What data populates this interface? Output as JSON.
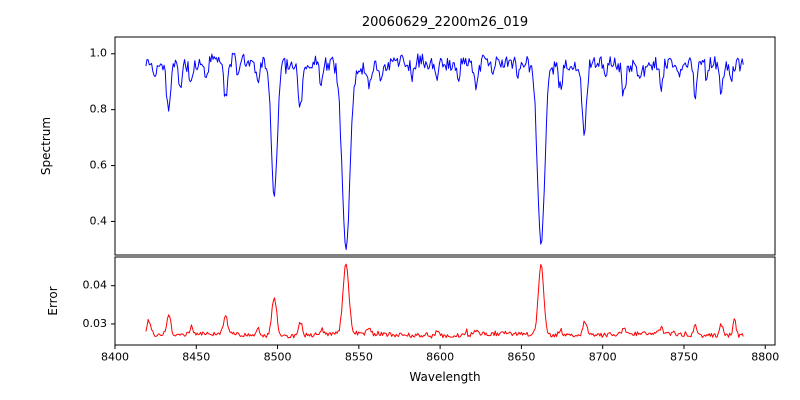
{
  "figure": {
    "title": "20060629_2200m26_019",
    "xlabel": "Wavelength",
    "background": "#ffffff"
  },
  "chart_data": {
    "type": "line",
    "title": "20060629_2200m26_019",
    "xlabel": "Wavelength",
    "xlim": [
      8400,
      8806
    ],
    "x_ticks": [
      8400,
      8450,
      8500,
      8550,
      8600,
      8650,
      8700,
      8750,
      8800
    ],
    "x_start": 8419,
    "x_end": 8787,
    "x_step": 0.7,
    "line_format": [
      "center_angstrom",
      "amplitude",
      "sigma_angstrom"
    ],
    "subplots": [
      {
        "name": "spectrum",
        "ylabel": "Spectrum",
        "color": "#0000ff",
        "ylim": [
          0.28,
          1.06
        ],
        "yticks": [
          0.4,
          0.6,
          0.8,
          1.0
        ],
        "tick_decimals": 1,
        "baseline": 0.965,
        "noise_amplitude": 0.027,
        "absorption_lines": [
          [
            8424,
            0.05,
            1.0
          ],
          [
            8433,
            0.17,
            1.3
          ],
          [
            8440,
            0.09,
            1.0
          ],
          [
            8447,
            0.07,
            1.0
          ],
          [
            8456,
            0.05,
            0.9
          ],
          [
            8468,
            0.14,
            1.2
          ],
          [
            8476,
            0.06,
            0.9
          ],
          [
            8488,
            0.07,
            1.0
          ],
          [
            8498.0,
            0.47,
            1.8
          ],
          [
            8514,
            0.16,
            1.3
          ],
          [
            8527,
            0.08,
            1.0
          ],
          [
            8542.1,
            0.655,
            2.4
          ],
          [
            8556,
            0.07,
            1.0
          ],
          [
            8564,
            0.05,
            0.9
          ],
          [
            8583,
            0.06,
            0.9
          ],
          [
            8598,
            0.08,
            1.0
          ],
          [
            8611,
            0.06,
            0.9
          ],
          [
            8622,
            0.08,
            1.0
          ],
          [
            8633,
            0.05,
            0.9
          ],
          [
            8648,
            0.06,
            0.9
          ],
          [
            8662.1,
            0.645,
            2.2
          ],
          [
            8674,
            0.08,
            1.0
          ],
          [
            8688.6,
            0.24,
            1.4
          ],
          [
            8702,
            0.06,
            0.9
          ],
          [
            8713,
            0.11,
            1.1
          ],
          [
            8722,
            0.05,
            0.9
          ],
          [
            8736,
            0.09,
            1.0
          ],
          [
            8747,
            0.07,
            0.9
          ],
          [
            8757,
            0.12,
            1.1
          ],
          [
            8764,
            0.06,
            0.9
          ],
          [
            8773,
            0.1,
            1.0
          ],
          [
            8779,
            0.06,
            0.9
          ]
        ]
      },
      {
        "name": "error",
        "ylabel": "Error",
        "color": "#ff0000",
        "ylim": [
          0.0245,
          0.0475
        ],
        "yticks": [
          0.03,
          0.04
        ],
        "tick_decimals": 2,
        "baseline": 0.0272,
        "noise_amplitude": 0.0006,
        "peaks": [
          [
            8421,
            0.003,
            1.5
          ],
          [
            8433,
            0.005,
            1.3
          ],
          [
            8447,
            0.002,
            1.0
          ],
          [
            8468,
            0.0048,
            1.2
          ],
          [
            8488,
            0.0015,
            1.0
          ],
          [
            8498.0,
            0.01,
            1.5
          ],
          [
            8514,
            0.0035,
            1.2
          ],
          [
            8527,
            0.0015,
            1.0
          ],
          [
            8542.1,
            0.0185,
            1.8
          ],
          [
            8556,
            0.0015,
            1.0
          ],
          [
            8598,
            0.0012,
            1.0
          ],
          [
            8622,
            0.0012,
            1.0
          ],
          [
            8662.1,
            0.018,
            1.7
          ],
          [
            8674,
            0.0015,
            1.0
          ],
          [
            8689,
            0.004,
            1.2
          ],
          [
            8713,
            0.0018,
            1.0
          ],
          [
            8736,
            0.0015,
            1.0
          ],
          [
            8757,
            0.0022,
            1.0
          ],
          [
            8773,
            0.003,
            1.0
          ],
          [
            8781,
            0.0045,
            0.9
          ]
        ]
      }
    ]
  }
}
